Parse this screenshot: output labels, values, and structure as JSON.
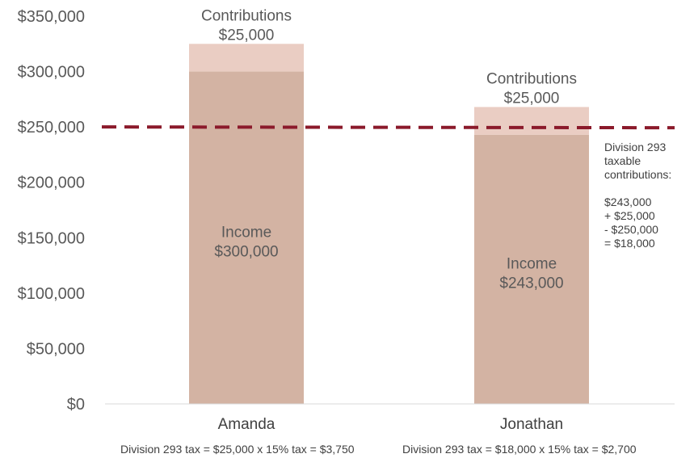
{
  "chart_data": {
    "type": "bar",
    "stacked": true,
    "categories": [
      "Amanda",
      "Jonathan"
    ],
    "series": [
      {
        "name": "Income",
        "values": [
          300000,
          243000
        ],
        "color": "#d3b3a3"
      },
      {
        "name": "Contributions",
        "values": [
          25000,
          25000
        ],
        "color": "#eacdc3"
      }
    ],
    "ylim": [
      0,
      350000
    ],
    "yticks": [
      0,
      50000,
      100000,
      150000,
      200000,
      250000,
      300000,
      350000
    ],
    "ytick_labels": [
      "$0",
      "$50,000",
      "$100,000",
      "$150,000",
      "$200,000",
      "$250,000",
      "$300,000",
      "$350,000"
    ],
    "grid": false,
    "threshold": {
      "value": 250000,
      "color": "#8b1a2b",
      "style": "dashed"
    },
    "bar_labels": [
      {
        "income_title": "Income",
        "income_value": "$300,000",
        "contrib_title": "Contributions",
        "contrib_value": "$25,000"
      },
      {
        "income_title": "Income",
        "income_value": "$243,000",
        "contrib_title": "Contributions",
        "contrib_value": "$25,000"
      }
    ],
    "annotation": {
      "lines": [
        "Division 293",
        "taxable",
        "contributions:",
        "",
        "$243,000",
        "+ $25,000",
        "- $250,000",
        "= $18,000"
      ]
    },
    "footnotes": [
      "Division 293 tax = $25,000 x 15% tax = $3,750",
      "Division 293 tax = $18,000 x 15% tax = $2,700"
    ]
  }
}
